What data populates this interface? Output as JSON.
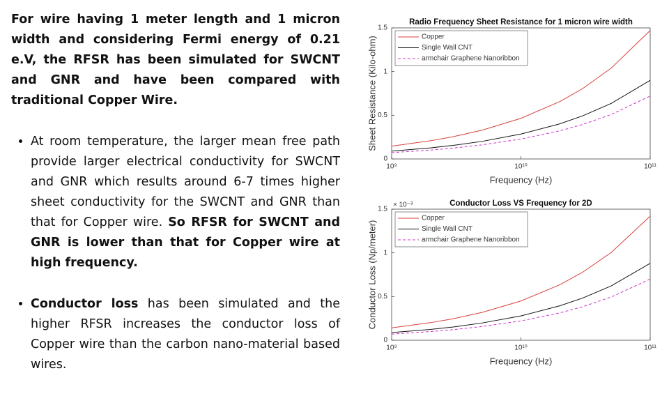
{
  "text": {
    "intro": "For wire having  1 meter length and 1 micron width and considering Fermi energy of 0.21 e.V, the RFSR has been simulated for SWCNT and GNR and have been compared with traditional Copper Wire.",
    "bullets": [
      {
        "runs": [
          {
            "text": "At room temperature, the larger mean free path provide larger electrical conductivity for SWCNT and GNR which results around 6-7 times higher sheet conductivity for the SWCNT and GNR than that for Copper wire. ",
            "bold": false
          },
          {
            "text": "So RFSR for SWCNT and GNR is lower than that for Copper wire at high frequency.",
            "bold": true
          }
        ]
      },
      {
        "runs": [
          {
            "text": "Conductor loss",
            "bold": true
          },
          {
            "text": " has been simulated and the higher RFSR increases the conductor loss of Copper wire than the carbon nano-material based wires.",
            "bold": false
          }
        ]
      }
    ]
  },
  "chart_data": [
    {
      "type": "line",
      "title": "Radio Frequency Sheet Resistance for 1 micron wire width",
      "x_label": "Frequency (Hz)",
      "y_label": "Sheet Resistance (Kilo-ohm)",
      "x_scale": "log",
      "legend": "upper-left",
      "x": [
        1000000000,
        2000000000,
        3000000000,
        5000000000,
        10000000000,
        20000000000,
        30000000000,
        50000000000,
        100000000000
      ],
      "xlim": [
        1000000000,
        100000000000
      ],
      "xticks": [
        {
          "value": 1000000000,
          "label": "10⁹"
        },
        {
          "value": 10000000000,
          "label": "10¹⁰"
        },
        {
          "value": 100000000000,
          "label": "10¹¹"
        }
      ],
      "ylim": [
        0,
        1.5
      ],
      "yticks": [
        0,
        0.5,
        1,
        1.5
      ],
      "series": [
        {
          "name": "Copper",
          "color": "#d9403a",
          "dash": "none",
          "values": [
            0.147,
            0.208,
            0.255,
            0.329,
            0.465,
            0.657,
            0.805,
            1.04,
            1.47
          ]
        },
        {
          "name": "Single Wall CNT",
          "color": "#111111",
          "dash": "none",
          "values": [
            0.09,
            0.127,
            0.156,
            0.201,
            0.285,
            0.402,
            0.493,
            0.636,
            0.9
          ]
        },
        {
          "name": "armchair Graphene Nanoribbon",
          "color": "#cc33cc",
          "dash": "4 3",
          "values": [
            0.072,
            0.102,
            0.125,
            0.161,
            0.228,
            0.322,
            0.394,
            0.509,
            0.72
          ]
        }
      ]
    },
    {
      "type": "line",
      "title": "Conductor Loss VS Frequency for 2D",
      "x_label": "Frequency (Hz)",
      "y_label": "Conductor Loss (Np/meter)",
      "y_multiplier": "× 10⁻³",
      "x_scale": "log",
      "legend": "upper-left",
      "x": [
        1000000000,
        2000000000,
        3000000000,
        5000000000,
        10000000000,
        20000000000,
        30000000000,
        50000000000,
        100000000000
      ],
      "xlim": [
        1000000000,
        100000000000
      ],
      "xticks": [
        {
          "value": 1000000000,
          "label": "10⁹"
        },
        {
          "value": 10000000000,
          "label": "10¹⁰"
        },
        {
          "value": 100000000000,
          "label": "10¹¹"
        }
      ],
      "ylim": [
        0,
        1.5
      ],
      "yticks": [
        0,
        0.5,
        1,
        1.5
      ],
      "series": [
        {
          "name": "Copper",
          "color": "#d9403a",
          "dash": "none",
          "values": [
            0.142,
            0.201,
            0.246,
            0.318,
            0.449,
            0.635,
            0.778,
            1.004,
            1.42
          ]
        },
        {
          "name": "Single Wall CNT",
          "color": "#111111",
          "dash": "none",
          "values": [
            0.088,
            0.124,
            0.152,
            0.197,
            0.278,
            0.394,
            0.482,
            0.622,
            0.88
          ]
        },
        {
          "name": "armchair Graphene Nanoribbon",
          "color": "#cc33cc",
          "dash": "4 3",
          "values": [
            0.07,
            0.099,
            0.121,
            0.157,
            0.221,
            0.313,
            0.383,
            0.495,
            0.7
          ]
        }
      ]
    }
  ]
}
